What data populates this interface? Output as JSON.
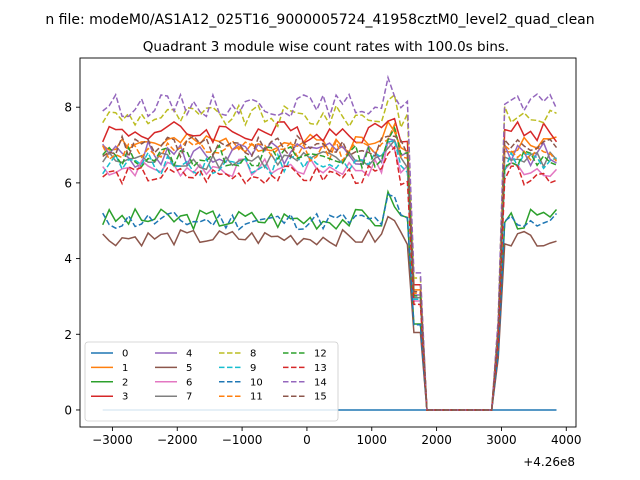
{
  "figure": {
    "suptitle": "n file: modeM0/AS1A12_025T16_9000005724_41958cztM0_level2_quad_clean",
    "title": "Quadrant 3 module wise count rates with 100.0s bins."
  },
  "chart_data": {
    "type": "line",
    "title": "Quadrant 3 module wise count rates with 100.0s bins.",
    "xlabel": "",
    "ylabel": "",
    "x_offset_label": "+4.26e8",
    "xlim": [
      -3500,
      4150
    ],
    "ylim": [
      -0.45,
      9.3
    ],
    "x_ticks": [
      -3000,
      -2000,
      -1000,
      0,
      1000,
      2000,
      3000,
      4000
    ],
    "x_tick_labels": [
      "−3000",
      "−2000",
      "−1000",
      "0",
      "1000",
      "2000",
      "3000",
      "4000"
    ],
    "y_ticks": [
      0,
      2,
      4,
      6,
      8
    ],
    "y_tick_labels": [
      "0",
      "2",
      "4",
      "6",
      "8"
    ],
    "grid": false,
    "legend": {
      "position": "lower-left",
      "columns": 4
    },
    "x_range": {
      "start": -3150,
      "step": 100,
      "end": 3900
    },
    "gap": {
      "last_on_before": 1600,
      "zero_from": 1800,
      "zero_to": 2900,
      "first_on_after": 3000
    },
    "series": [
      {
        "name": "0",
        "color": "#1f77b4",
        "style": "solid",
        "level": 0.0,
        "spread": 0.0,
        "seed": 1
      },
      {
        "name": "1",
        "color": "#ff7f0e",
        "style": "solid",
        "level": 7.05,
        "spread": 0.25,
        "seed": 2
      },
      {
        "name": "2",
        "color": "#2ca02c",
        "style": "solid",
        "level": 5.05,
        "spread": 0.28,
        "seed": 3
      },
      {
        "name": "3",
        "color": "#d62728",
        "style": "solid",
        "level": 7.35,
        "spread": 0.3,
        "seed": 4
      },
      {
        "name": "4",
        "color": "#9467bd",
        "style": "solid",
        "level": 6.75,
        "spread": 0.35,
        "seed": 5
      },
      {
        "name": "5",
        "color": "#8c564b",
        "style": "solid",
        "level": 4.55,
        "spread": 0.22,
        "seed": 6
      },
      {
        "name": "6",
        "color": "#e377c2",
        "style": "solid",
        "level": 6.4,
        "spread": 0.25,
        "seed": 7
      },
      {
        "name": "7",
        "color": "#7f7f7f",
        "style": "solid",
        "level": 6.6,
        "spread": 0.25,
        "seed": 8
      },
      {
        "name": "8",
        "color": "#bcbd22",
        "style": "dashed",
        "level": 7.75,
        "spread": 0.3,
        "seed": 9
      },
      {
        "name": "9",
        "color": "#17becf",
        "style": "dashed",
        "level": 6.5,
        "spread": 0.3,
        "seed": 10
      },
      {
        "name": "10",
        "color": "#1f77b4",
        "style": "dashed",
        "level": 5.0,
        "spread": 0.25,
        "seed": 11
      },
      {
        "name": "11",
        "color": "#ff7f0e",
        "style": "dashed",
        "level": 6.85,
        "spread": 0.28,
        "seed": 12
      },
      {
        "name": "12",
        "color": "#2ca02c",
        "style": "dashed",
        "level": 6.7,
        "spread": 0.3,
        "seed": 13
      },
      {
        "name": "13",
        "color": "#d62728",
        "style": "dashed",
        "level": 6.2,
        "spread": 0.25,
        "seed": 14
      },
      {
        "name": "14",
        "color": "#9467bd",
        "style": "dashed",
        "level": 8.05,
        "spread": 0.3,
        "seed": 15
      },
      {
        "name": "15",
        "color": "#8c564b",
        "style": "dashed",
        "level": 6.95,
        "spread": 0.3,
        "seed": 16
      }
    ]
  }
}
